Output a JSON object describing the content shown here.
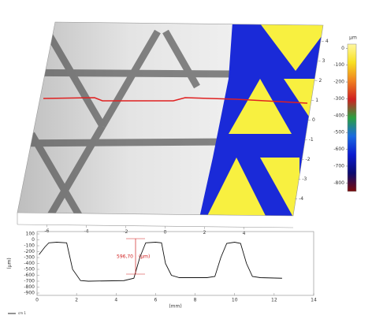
{
  "chart_data": [
    {
      "type": "surface",
      "xlim": [
        -7.5,
        6.5
      ],
      "xticks": [
        -6,
        -4,
        -2,
        0,
        2,
        4
      ],
      "ylim": [
        -4.5,
        4.5
      ],
      "yticks": [
        4,
        3,
        2,
        1,
        0,
        -1,
        -2,
        -3,
        -4
      ]
    },
    {
      "type": "colorbar",
      "unit": "μm",
      "ylim": [
        -850,
        25
      ],
      "yticks": [
        0,
        -100,
        -200,
        -300,
        -400,
        -500,
        -600,
        -700,
        -800
      ],
      "colors": [
        "#7a0a0a",
        "#0a0a70",
        "#0a1ad0",
        "#1a6ae0",
        "#2aa040",
        "#d02020",
        "#f08020",
        "#f8e020",
        "#fff8a0"
      ]
    },
    {
      "type": "line",
      "xlabel": "(mm)",
      "ylabel": "(μm)",
      "annotation": "596,70",
      "annotation_unit": "(μm)",
      "legend": "cm 1",
      "xlim": [
        0,
        14
      ],
      "xticks": [
        0,
        2,
        4,
        6,
        8,
        10,
        12,
        14
      ],
      "ylim": [
        -900,
        100
      ],
      "yticks": [
        100,
        0,
        -100,
        -200,
        -300,
        -400,
        -500,
        -600,
        -700,
        -800,
        -900
      ],
      "series": [
        {
          "color": "#111",
          "x": [
            0.1,
            0.4,
            0.6,
            1.0,
            1.5,
            1.8,
            2.2,
            2.6,
            4.4,
            4.9,
            5.2,
            5.5,
            6.0,
            6.3,
            6.5,
            6.8,
            7.2,
            8.6,
            9.0,
            9.3,
            9.6,
            10.0,
            10.3,
            10.6,
            10.9,
            11.3,
            12.4
          ],
          "values": [
            -250,
            -120,
            -50,
            -40,
            -50,
            -500,
            -690,
            -700,
            -690,
            -650,
            -300,
            -50,
            -40,
            -50,
            -400,
            -600,
            -640,
            -640,
            -620,
            -300,
            -60,
            -40,
            -60,
            -400,
            -620,
            -640,
            -650
          ]
        }
      ]
    }
  ]
}
